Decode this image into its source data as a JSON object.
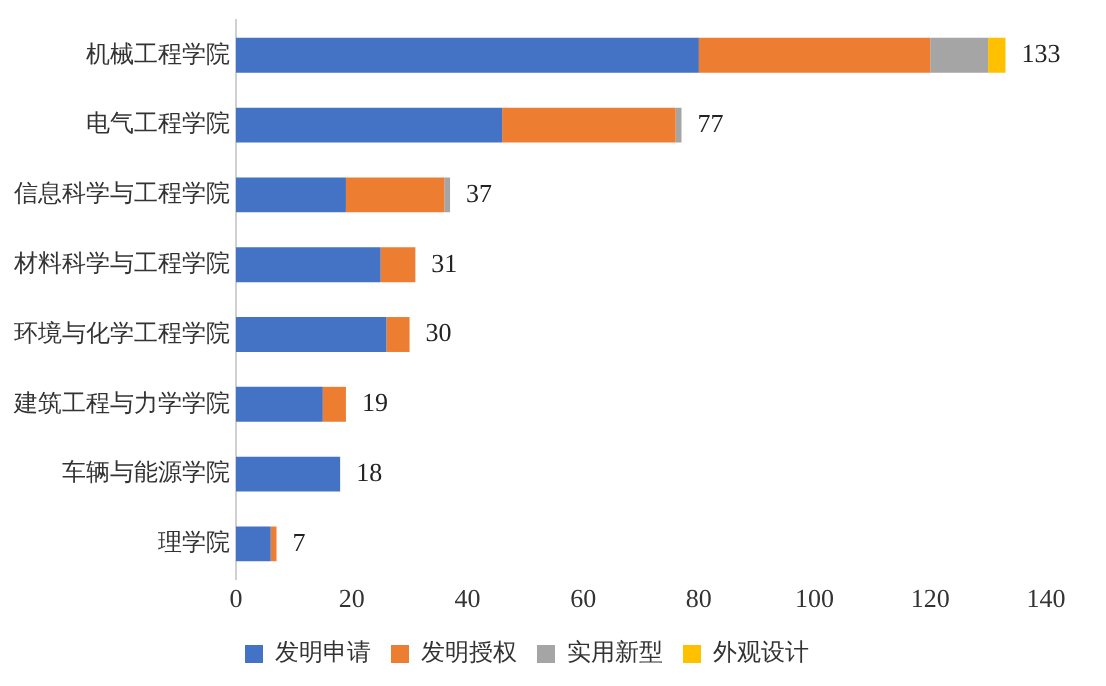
{
  "chart_data": {
    "type": "bar",
    "orientation": "horizontal",
    "stacked": true,
    "categories": [
      "机械工程学院",
      "电气工程学院",
      "信息科学与工程学院",
      "材料科学与工程学院",
      "环境与化学工程学院",
      "建筑工程与力学学院",
      "车辆与能源学院",
      "理学院"
    ],
    "series": [
      {
        "name": "发明申请",
        "color": "#4472c4",
        "values": [
          80,
          46,
          19,
          25,
          26,
          15,
          18,
          6
        ]
      },
      {
        "name": "发明授权",
        "color": "#ed7d31",
        "values": [
          40,
          30,
          17,
          6,
          4,
          4,
          0,
          1
        ]
      },
      {
        "name": "实用新型",
        "color": "#a5a5a5",
        "values": [
          10,
          1,
          1,
          0,
          0,
          0,
          0,
          0
        ]
      },
      {
        "name": "外观设计",
        "color": "#ffc000",
        "values": [
          3,
          0,
          0,
          0,
          0,
          0,
          0,
          0
        ]
      }
    ],
    "totals": [
      "133",
      "77",
      "37",
      "31",
      "30",
      "19",
      "18",
      "7"
    ],
    "xlim": [
      0,
      140
    ],
    "xticks": [
      0,
      20,
      40,
      60,
      80,
      100,
      120,
      140
    ],
    "grid": false,
    "legend": "bottom"
  }
}
